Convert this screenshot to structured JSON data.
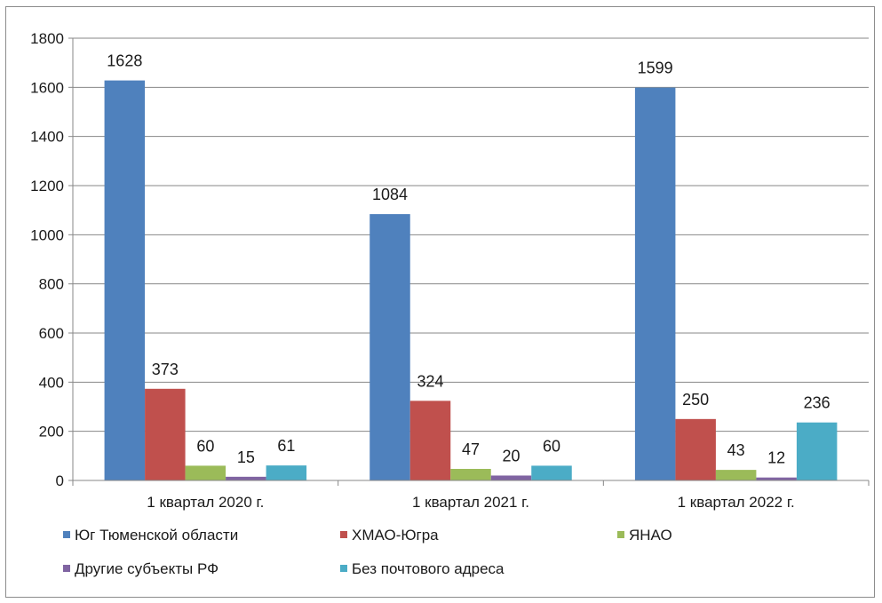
{
  "chart_data": {
    "type": "bar",
    "categories": [
      "1 квартал 2020 г.",
      "1 квартал 2021 г.",
      "1 квартал 2022 г."
    ],
    "series": [
      {
        "name": "Юг Тюменской области",
        "color": "#4f81bd",
        "values": [
          1628,
          1084,
          1599
        ]
      },
      {
        "name": "ХМАО-Югра",
        "color": "#c0504d",
        "values": [
          373,
          324,
          250
        ]
      },
      {
        "name": "ЯНАО",
        "color": "#9bbb59",
        "values": [
          60,
          47,
          43
        ]
      },
      {
        "name": "Другие субъекты РФ",
        "color": "#8064a2",
        "values": [
          15,
          20,
          12
        ]
      },
      {
        "name": "Без почтового адреса",
        "color": "#4bacc6",
        "values": [
          61,
          60,
          236
        ]
      }
    ],
    "ylim": [
      0,
      1800
    ],
    "yticks": [
      0,
      200,
      400,
      600,
      800,
      1000,
      1200,
      1400,
      1600,
      1800
    ],
    "grid": true,
    "legend_position": "bottom"
  }
}
